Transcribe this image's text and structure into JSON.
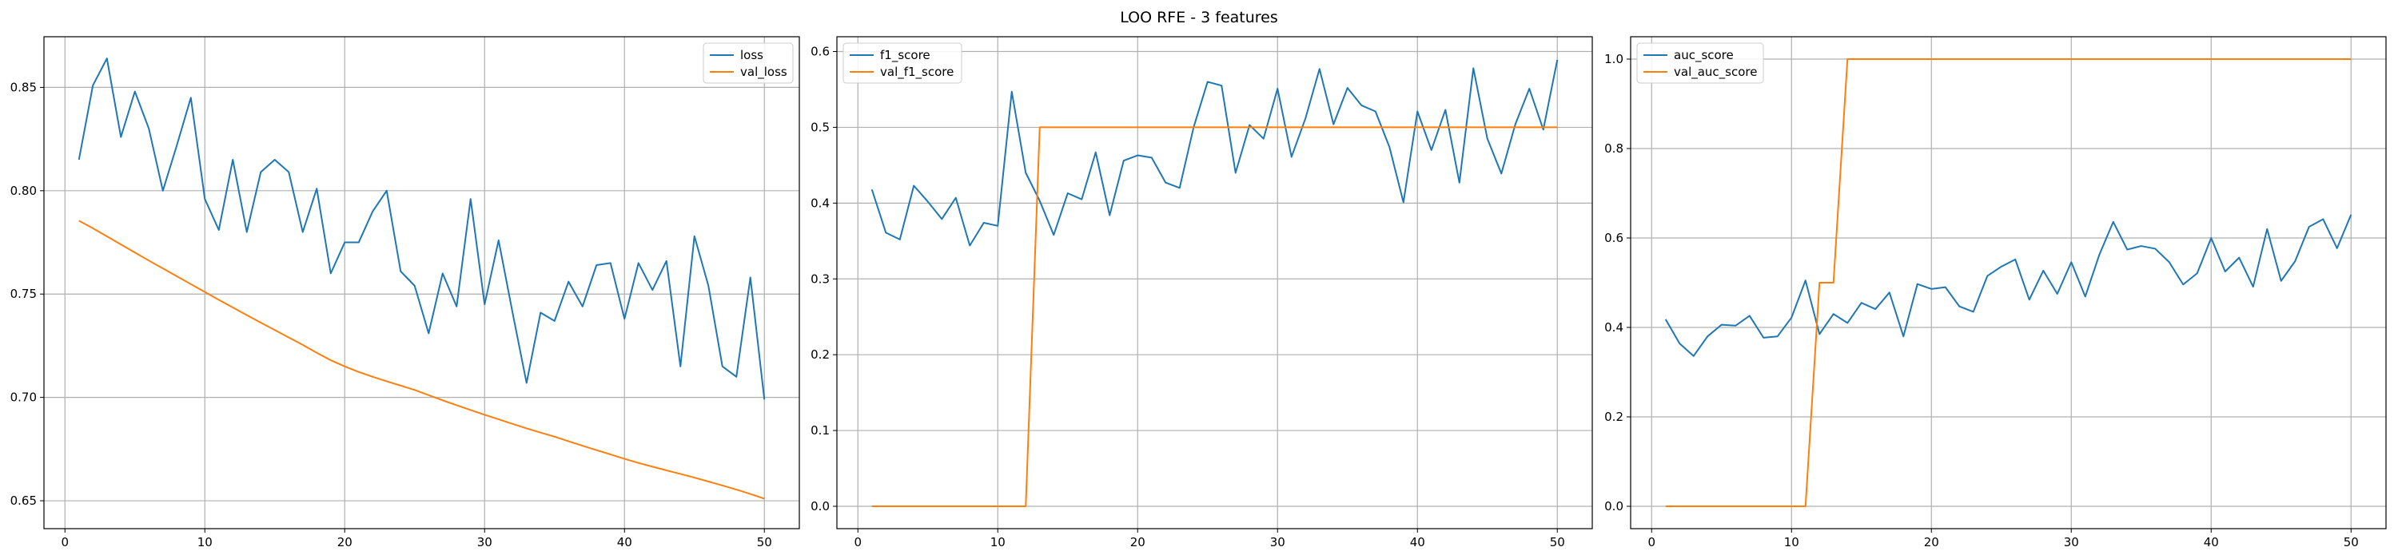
{
  "figure": {
    "title": "LOO RFE - 3 features"
  },
  "colors": {
    "series1": "#1f77b4",
    "series2": "#ff7f0e",
    "grid": "#b0b0b0"
  },
  "chart_data": [
    {
      "type": "line",
      "grid": true,
      "legend_position": "top-right",
      "xlim": [
        -1.5,
        52.5
      ],
      "ylim": [
        0.6365,
        0.8745
      ],
      "xticks": [
        0,
        10,
        20,
        30,
        40,
        50
      ],
      "yticks": [
        0.65,
        0.7,
        0.75,
        0.8,
        0.85
      ],
      "ytick_labels": [
        "0.65",
        "0.70",
        "0.75",
        "0.80",
        "0.85"
      ],
      "x": [
        1,
        2,
        3,
        4,
        5,
        6,
        7,
        8,
        9,
        10,
        11,
        12,
        13,
        14,
        15,
        16,
        17,
        18,
        19,
        20,
        21,
        22,
        23,
        24,
        25,
        26,
        27,
        28,
        29,
        30,
        31,
        32,
        33,
        34,
        35,
        36,
        37,
        38,
        39,
        40,
        41,
        42,
        43,
        44,
        45,
        46,
        47,
        48,
        49,
        50
      ],
      "series": [
        {
          "name": "loss",
          "color": "#1f77b4",
          "values": [
            0.815,
            0.851,
            0.864,
            0.826,
            0.848,
            0.83,
            0.8,
            0.822,
            0.845,
            0.796,
            0.781,
            0.815,
            0.78,
            0.809,
            0.815,
            0.809,
            0.78,
            0.801,
            0.76,
            0.775,
            0.775,
            0.79,
            0.8,
            0.761,
            0.754,
            0.731,
            0.76,
            0.744,
            0.796,
            0.745,
            0.776,
            0.741,
            0.707,
            0.741,
            0.737,
            0.756,
            0.744,
            0.764,
            0.765,
            0.738,
            0.765,
            0.752,
            0.766,
            0.715,
            0.778,
            0.754,
            0.715,
            0.71,
            0.758,
            0.699
          ]
        },
        {
          "name": "val_loss",
          "color": "#ff7f0e",
          "values": [
            0.7855,
            0.7818,
            0.7779,
            0.774,
            0.7701,
            0.7662,
            0.7624,
            0.7586,
            0.7548,
            0.751,
            0.7472,
            0.7435,
            0.7398,
            0.7362,
            0.7326,
            0.729,
            0.7254,
            0.7216,
            0.718,
            0.715,
            0.7123,
            0.71,
            0.7078,
            0.7057,
            0.7036,
            0.7011,
            0.6986,
            0.6962,
            0.6939,
            0.6916,
            0.6894,
            0.6872,
            0.685,
            0.683,
            0.681,
            0.6788,
            0.6766,
            0.6745,
            0.6724,
            0.6703,
            0.6683,
            0.6665,
            0.6647,
            0.663,
            0.6612,
            0.6593,
            0.6574,
            0.6554,
            0.6533,
            0.651
          ]
        }
      ]
    },
    {
      "type": "line",
      "grid": true,
      "legend_position": "top-left",
      "xlim": [
        -1.5,
        52.5
      ],
      "ylim": [
        -0.0295,
        0.6195
      ],
      "xticks": [
        0,
        10,
        20,
        30,
        40,
        50
      ],
      "yticks": [
        0.0,
        0.1,
        0.2,
        0.3,
        0.4,
        0.5,
        0.6
      ],
      "ytick_labels": [
        "0.0",
        "0.1",
        "0.2",
        "0.3",
        "0.4",
        "0.5",
        "0.6"
      ],
      "x": [
        1,
        2,
        3,
        4,
        5,
        6,
        7,
        8,
        9,
        10,
        11,
        12,
        13,
        14,
        15,
        16,
        17,
        18,
        19,
        20,
        21,
        22,
        23,
        24,
        25,
        26,
        27,
        28,
        29,
        30,
        31,
        32,
        33,
        34,
        35,
        36,
        37,
        38,
        39,
        40,
        41,
        42,
        43,
        44,
        45,
        46,
        47,
        48,
        49,
        50
      ],
      "series": [
        {
          "name": "f1_score",
          "color": "#1f77b4",
          "values": [
            0.418,
            0.361,
            0.352,
            0.423,
            0.402,
            0.379,
            0.407,
            0.344,
            0.374,
            0.37,
            0.547,
            0.44,
            0.403,
            0.358,
            0.413,
            0.405,
            0.467,
            0.384,
            0.456,
            0.463,
            0.46,
            0.427,
            0.42,
            0.5,
            0.56,
            0.555,
            0.44,
            0.503,
            0.485,
            0.551,
            0.461,
            0.512,
            0.577,
            0.504,
            0.552,
            0.529,
            0.521,
            0.474,
            0.401,
            0.521,
            0.47,
            0.523,
            0.427,
            0.578,
            0.485,
            0.439,
            0.504,
            0.551,
            0.497,
            0.589
          ]
        },
        {
          "name": "val_f1_score",
          "color": "#ff7f0e",
          "values": [
            0,
            0,
            0,
            0,
            0,
            0,
            0,
            0,
            0,
            0,
            0,
            0,
            0.5,
            0.5,
            0.5,
            0.5,
            0.5,
            0.5,
            0.5,
            0.5,
            0.5,
            0.5,
            0.5,
            0.5,
            0.5,
            0.5,
            0.5,
            0.5,
            0.5,
            0.5,
            0.5,
            0.5,
            0.5,
            0.5,
            0.5,
            0.5,
            0.5,
            0.5,
            0.5,
            0.5,
            0.5,
            0.5,
            0.5,
            0.5,
            0.5,
            0.5,
            0.5,
            0.5,
            0.5,
            0.5
          ]
        }
      ]
    },
    {
      "type": "line",
      "grid": true,
      "legend_position": "top-left",
      "xlim": [
        -1.5,
        52.5
      ],
      "ylim": [
        -0.05,
        1.05
      ],
      "xticks": [
        0,
        10,
        20,
        30,
        40,
        50
      ],
      "yticks": [
        0.0,
        0.2,
        0.4,
        0.6,
        0.8,
        1.0
      ],
      "ytick_labels": [
        "0.0",
        "0.2",
        "0.4",
        "0.6",
        "0.8",
        "1.0"
      ],
      "x": [
        1,
        2,
        3,
        4,
        5,
        6,
        7,
        8,
        9,
        10,
        11,
        12,
        13,
        14,
        15,
        16,
        17,
        18,
        19,
        20,
        21,
        22,
        23,
        24,
        25,
        26,
        27,
        28,
        29,
        30,
        31,
        32,
        33,
        34,
        35,
        36,
        37,
        38,
        39,
        40,
        41,
        42,
        43,
        44,
        45,
        46,
        47,
        48,
        49,
        50
      ],
      "series": [
        {
          "name": "auc_score",
          "color": "#1f77b4",
          "values": [
            0.418,
            0.364,
            0.336,
            0.38,
            0.406,
            0.404,
            0.426,
            0.377,
            0.38,
            0.422,
            0.505,
            0.385,
            0.43,
            0.41,
            0.455,
            0.441,
            0.478,
            0.38,
            0.497,
            0.486,
            0.49,
            0.447,
            0.435,
            0.515,
            0.536,
            0.552,
            0.462,
            0.527,
            0.475,
            0.546,
            0.469,
            0.562,
            0.636,
            0.574,
            0.582,
            0.576,
            0.546,
            0.496,
            0.521,
            0.6,
            0.525,
            0.556,
            0.491,
            0.62,
            0.504,
            0.548,
            0.625,
            0.642,
            0.577,
            0.652
          ]
        },
        {
          "name": "val_auc_score",
          "color": "#ff7f0e",
          "values": [
            0,
            0,
            0,
            0,
            0,
            0,
            0,
            0,
            0,
            0,
            0,
            0.5,
            0.5,
            1,
            1,
            1,
            1,
            1,
            1,
            1,
            1,
            1,
            1,
            1,
            1,
            1,
            1,
            1,
            1,
            1,
            1,
            1,
            1,
            1,
            1,
            1,
            1,
            1,
            1,
            1,
            1,
            1,
            1,
            1,
            1,
            1,
            1,
            1,
            1,
            1
          ]
        }
      ]
    }
  ]
}
